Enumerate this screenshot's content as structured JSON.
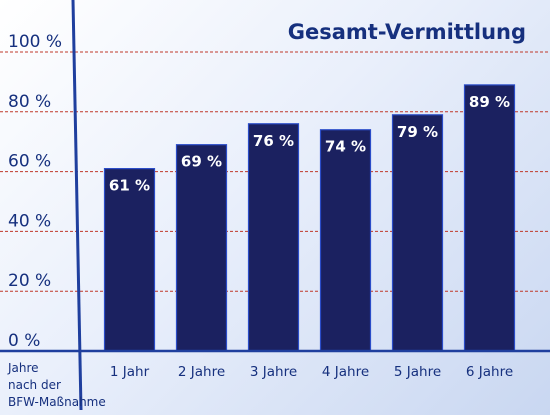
{
  "chart_data": {
    "type": "bar",
    "title": "Gesamt-Vermittlung",
    "xlabel": "Jahre\nnach der\nBFW-Maßnahme",
    "ylabel": "",
    "categories": [
      "1 Jahr",
      "2 Jahre",
      "3 Jahre",
      "4 Jahre",
      "5 Jahre",
      "6 Jahre"
    ],
    "values": [
      61,
      69,
      76,
      74,
      79,
      89
    ],
    "value_labels": [
      "61 %",
      "69 %",
      "76 %",
      "74 %",
      "79 %",
      "89 %"
    ],
    "yticks": [
      0,
      20,
      40,
      60,
      80,
      100
    ],
    "ytick_labels": [
      "0 %",
      "20 %",
      "40 %",
      "60 %",
      "80 %",
      "100 %"
    ],
    "ylim": [
      0,
      100
    ],
    "grid": true,
    "legend": "none",
    "colors": {
      "bar": "#1b2160",
      "bar_edge": "#2a4cc8",
      "text": "#16307e",
      "grid": "#c0392b",
      "axis": "#1f3f9e"
    }
  }
}
